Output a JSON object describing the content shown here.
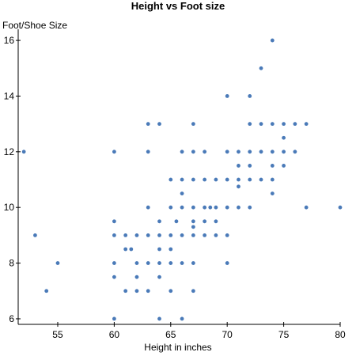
{
  "chart_data": {
    "type": "scatter",
    "title": "Height vs Foot size",
    "xlabel": "Height in inches",
    "ylabel": "Foot/Shoe Size",
    "xlim": [
      51.5,
      80
    ],
    "ylim": [
      5.8,
      16.4
    ],
    "xticks": [
      55,
      60,
      65,
      70,
      75,
      80
    ],
    "yticks": [
      6,
      8,
      10,
      12,
      14,
      16
    ],
    "grid": false,
    "point_color": "#4a7ab8",
    "points": [
      [
        52,
        12
      ],
      [
        53,
        9
      ],
      [
        54,
        7
      ],
      [
        55,
        8
      ],
      [
        60,
        12
      ],
      [
        60,
        9.5
      ],
      [
        60,
        9
      ],
      [
        60,
        8
      ],
      [
        60,
        7.5
      ],
      [
        60,
        6
      ],
      [
        61,
        9
      ],
      [
        61,
        8.5
      ],
      [
        61,
        7
      ],
      [
        61.5,
        8.5
      ],
      [
        62,
        9
      ],
      [
        62,
        8
      ],
      [
        62,
        7.5
      ],
      [
        62,
        7
      ],
      [
        63,
        13
      ],
      [
        63,
        12
      ],
      [
        63,
        10
      ],
      [
        63,
        9
      ],
      [
        63,
        8
      ],
      [
        63,
        7
      ],
      [
        64,
        13
      ],
      [
        64,
        9.5
      ],
      [
        64,
        9
      ],
      [
        64,
        8.5
      ],
      [
        64,
        8
      ],
      [
        64,
        7.5
      ],
      [
        64,
        6
      ],
      [
        65,
        11
      ],
      [
        65,
        10
      ],
      [
        65,
        9
      ],
      [
        65,
        8.5
      ],
      [
        65,
        8
      ],
      [
        65,
        7
      ],
      [
        65.5,
        9.5
      ],
      [
        66,
        12
      ],
      [
        66,
        11
      ],
      [
        66,
        10.5
      ],
      [
        66,
        10
      ],
      [
        66,
        9
      ],
      [
        66,
        8
      ],
      [
        66,
        6
      ],
      [
        67,
        13
      ],
      [
        67,
        12
      ],
      [
        67,
        11
      ],
      [
        67,
        10
      ],
      [
        67,
        9.5
      ],
      [
        67,
        9.3
      ],
      [
        67,
        9
      ],
      [
        67,
        8
      ],
      [
        67,
        7
      ],
      [
        68,
        12
      ],
      [
        68,
        11
      ],
      [
        68,
        10
      ],
      [
        68,
        9.5
      ],
      [
        68,
        9
      ],
      [
        68.5,
        10
      ],
      [
        69,
        11
      ],
      [
        69,
        10
      ],
      [
        69,
        9.5
      ],
      [
        69,
        9
      ],
      [
        70,
        14
      ],
      [
        70,
        12
      ],
      [
        70,
        11
      ],
      [
        70,
        10
      ],
      [
        70,
        9
      ],
      [
        70,
        8
      ],
      [
        71,
        12
      ],
      [
        71,
        11.5
      ],
      [
        71,
        11
      ],
      [
        71,
        10.75
      ],
      [
        71,
        10
      ],
      [
        72,
        14
      ],
      [
        72,
        13
      ],
      [
        72,
        12
      ],
      [
        72,
        11.5
      ],
      [
        72,
        11
      ],
      [
        72,
        10
      ],
      [
        73,
        15
      ],
      [
        73,
        13
      ],
      [
        73,
        12
      ],
      [
        73,
        11
      ],
      [
        74,
        16
      ],
      [
        74,
        13
      ],
      [
        74,
        12
      ],
      [
        74,
        11.5
      ],
      [
        74,
        11
      ],
      [
        74,
        10.5
      ],
      [
        75,
        13
      ],
      [
        75,
        12.5
      ],
      [
        75,
        12
      ],
      [
        75,
        11.5
      ],
      [
        76,
        13
      ],
      [
        76,
        12
      ],
      [
        77,
        13
      ],
      [
        77,
        10
      ],
      [
        80,
        10
      ]
    ]
  }
}
